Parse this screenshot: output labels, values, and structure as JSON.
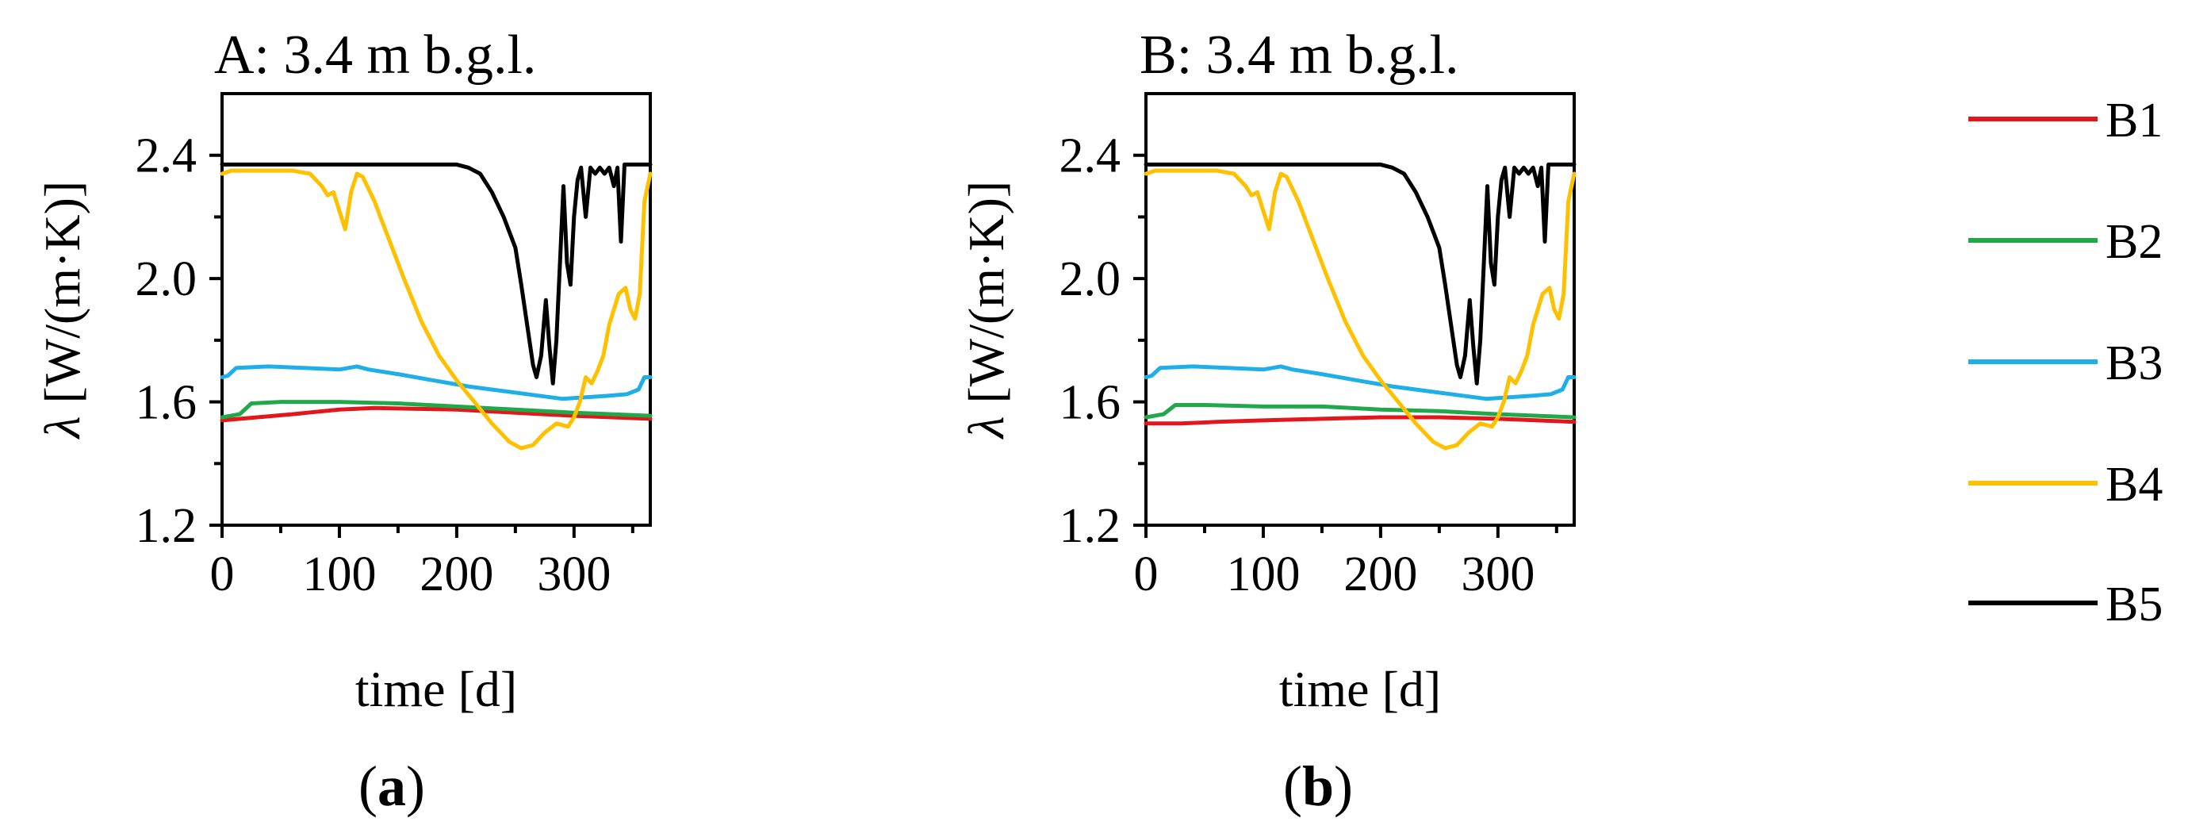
{
  "chart_data": [
    {
      "type": "line",
      "title": "A: 3.4 m b.g.l.",
      "caption_letter": "a",
      "xlabel": "time [d]",
      "ylabel_symbol": "λ",
      "ylabel_unit": "[W/(m·K)]",
      "xlim": [
        0,
        365
      ],
      "ylim": [
        1.2,
        2.6
      ],
      "xticks": [
        0,
        100,
        200,
        300
      ],
      "xminor": [
        50,
        150,
        250,
        350
      ],
      "yticks": [
        1.2,
        1.6,
        2.0,
        2.4
      ],
      "yminor": [
        1.4,
        1.8,
        2.2
      ],
      "series": [
        {
          "name": "B1",
          "color": "#e3161b",
          "points": [
            [
              0,
              1.54
            ],
            [
              30,
              1.55
            ],
            [
              60,
              1.56
            ],
            [
              100,
              1.575
            ],
            [
              130,
              1.58
            ],
            [
              200,
              1.575
            ],
            [
              250,
              1.565
            ],
            [
              300,
              1.555
            ],
            [
              365,
              1.545
            ]
          ]
        },
        {
          "name": "B2",
          "color": "#21a84a",
          "points": [
            [
              0,
              1.55
            ],
            [
              15,
              1.56
            ],
            [
              25,
              1.595
            ],
            [
              50,
              1.6
            ],
            [
              100,
              1.6
            ],
            [
              150,
              1.595
            ],
            [
              200,
              1.585
            ],
            [
              250,
              1.575
            ],
            [
              300,
              1.565
            ],
            [
              365,
              1.555
            ]
          ]
        },
        {
          "name": "B3",
          "color": "#1eaee8",
          "points": [
            [
              0,
              1.68
            ],
            [
              5,
              1.685
            ],
            [
              12,
              1.71
            ],
            [
              40,
              1.715
            ],
            [
              70,
              1.71
            ],
            [
              100,
              1.705
            ],
            [
              115,
              1.715
            ],
            [
              125,
              1.705
            ],
            [
              150,
              1.69
            ],
            [
              180,
              1.67
            ],
            [
              210,
              1.65
            ],
            [
              240,
              1.635
            ],
            [
              270,
              1.62
            ],
            [
              290,
              1.61
            ],
            [
              310,
              1.615
            ],
            [
              330,
              1.62
            ],
            [
              345,
              1.625
            ],
            [
              355,
              1.64
            ],
            [
              360,
              1.68
            ],
            [
              365,
              1.68
            ]
          ]
        },
        {
          "name": "B4",
          "color": "#ffc000",
          "points": [
            [
              0,
              2.34
            ],
            [
              8,
              2.35
            ],
            [
              60,
              2.35
            ],
            [
              75,
              2.34
            ],
            [
              85,
              2.3
            ],
            [
              90,
              2.27
            ],
            [
              95,
              2.28
            ],
            [
              100,
              2.22
            ],
            [
              105,
              2.16
            ],
            [
              110,
              2.28
            ],
            [
              115,
              2.34
            ],
            [
              120,
              2.33
            ],
            [
              130,
              2.25
            ],
            [
              140,
              2.15
            ],
            [
              155,
              2.0
            ],
            [
              170,
              1.86
            ],
            [
              185,
              1.75
            ],
            [
              200,
              1.67
            ],
            [
              215,
              1.6
            ],
            [
              230,
              1.53
            ],
            [
              245,
              1.47
            ],
            [
              255,
              1.45
            ],
            [
              265,
              1.46
            ],
            [
              275,
              1.5
            ],
            [
              285,
              1.53
            ],
            [
              295,
              1.52
            ],
            [
              300,
              1.55
            ],
            [
              305,
              1.6
            ],
            [
              310,
              1.68
            ],
            [
              315,
              1.66
            ],
            [
              320,
              1.7
            ],
            [
              325,
              1.75
            ],
            [
              330,
              1.85
            ],
            [
              338,
              1.95
            ],
            [
              344,
              1.97
            ],
            [
              348,
              1.9
            ],
            [
              352,
              1.87
            ],
            [
              356,
              1.95
            ],
            [
              360,
              2.25
            ],
            [
              365,
              2.34
            ]
          ]
        },
        {
          "name": "B5",
          "color": "#000000",
          "points": [
            [
              0,
              2.37
            ],
            [
              200,
              2.37
            ],
            [
              210,
              2.36
            ],
            [
              220,
              2.34
            ],
            [
              230,
              2.28
            ],
            [
              240,
              2.2
            ],
            [
              250,
              2.1
            ],
            [
              255,
              1.98
            ],
            [
              260,
              1.85
            ],
            [
              265,
              1.72
            ],
            [
              268,
              1.68
            ],
            [
              272,
              1.75
            ],
            [
              276,
              1.93
            ],
            [
              279,
              1.78
            ],
            [
              282,
              1.66
            ],
            [
              285,
              1.8
            ],
            [
              288,
              2.05
            ],
            [
              291,
              2.3
            ],
            [
              294,
              2.05
            ],
            [
              297,
              1.98
            ],
            [
              300,
              2.2
            ],
            [
              303,
              2.32
            ],
            [
              306,
              2.36
            ],
            [
              310,
              2.2
            ],
            [
              314,
              2.36
            ],
            [
              318,
              2.34
            ],
            [
              322,
              2.36
            ],
            [
              326,
              2.34
            ],
            [
              330,
              2.36
            ],
            [
              334,
              2.3
            ],
            [
              337,
              2.36
            ],
            [
              340,
              2.12
            ],
            [
              343,
              2.37
            ],
            [
              365,
              2.37
            ]
          ]
        }
      ]
    },
    {
      "type": "line",
      "title": "B: 3.4 m b.g.l.",
      "caption_letter": "b",
      "xlabel": "time [d]",
      "ylabel_symbol": "λ",
      "ylabel_unit": "[W/(m·K)]",
      "xlim": [
        0,
        365
      ],
      "ylim": [
        1.2,
        2.6
      ],
      "xticks": [
        0,
        100,
        200,
        300
      ],
      "xminor": [
        50,
        150,
        250,
        350
      ],
      "yticks": [
        1.2,
        1.6,
        2.0,
        2.4
      ],
      "yminor": [
        1.4,
        1.8,
        2.2
      ],
      "series": [
        {
          "name": "B1",
          "color": "#e3161b",
          "points": [
            [
              0,
              1.53
            ],
            [
              30,
              1.53
            ],
            [
              60,
              1.535
            ],
            [
              100,
              1.54
            ],
            [
              150,
              1.545
            ],
            [
              200,
              1.55
            ],
            [
              250,
              1.55
            ],
            [
              300,
              1.545
            ],
            [
              365,
              1.535
            ]
          ]
        },
        {
          "name": "B2",
          "color": "#21a84a",
          "points": [
            [
              0,
              1.55
            ],
            [
              15,
              1.56
            ],
            [
              25,
              1.59
            ],
            [
              50,
              1.59
            ],
            [
              100,
              1.585
            ],
            [
              150,
              1.585
            ],
            [
              200,
              1.575
            ],
            [
              250,
              1.57
            ],
            [
              300,
              1.56
            ],
            [
              365,
              1.55
            ]
          ]
        },
        {
          "name": "B3",
          "color": "#1eaee8",
          "points": [
            [
              0,
              1.68
            ],
            [
              5,
              1.685
            ],
            [
              12,
              1.71
            ],
            [
              40,
              1.715
            ],
            [
              70,
              1.71
            ],
            [
              100,
              1.705
            ],
            [
              115,
              1.715
            ],
            [
              125,
              1.705
            ],
            [
              150,
              1.69
            ],
            [
              180,
              1.67
            ],
            [
              210,
              1.65
            ],
            [
              240,
              1.635
            ],
            [
              270,
              1.62
            ],
            [
              290,
              1.61
            ],
            [
              310,
              1.615
            ],
            [
              330,
              1.62
            ],
            [
              345,
              1.625
            ],
            [
              355,
              1.64
            ],
            [
              360,
              1.68
            ],
            [
              365,
              1.68
            ]
          ]
        },
        {
          "name": "B4",
          "color": "#ffc000",
          "points": [
            [
              0,
              2.34
            ],
            [
              8,
              2.35
            ],
            [
              60,
              2.35
            ],
            [
              75,
              2.34
            ],
            [
              85,
              2.3
            ],
            [
              90,
              2.27
            ],
            [
              95,
              2.28
            ],
            [
              100,
              2.22
            ],
            [
              105,
              2.16
            ],
            [
              110,
              2.28
            ],
            [
              115,
              2.34
            ],
            [
              120,
              2.33
            ],
            [
              130,
              2.25
            ],
            [
              140,
              2.15
            ],
            [
              155,
              2.0
            ],
            [
              170,
              1.86
            ],
            [
              185,
              1.75
            ],
            [
              200,
              1.67
            ],
            [
              215,
              1.6
            ],
            [
              230,
              1.53
            ],
            [
              245,
              1.47
            ],
            [
              255,
              1.45
            ],
            [
              265,
              1.46
            ],
            [
              275,
              1.5
            ],
            [
              285,
              1.53
            ],
            [
              295,
              1.52
            ],
            [
              300,
              1.55
            ],
            [
              305,
              1.6
            ],
            [
              310,
              1.68
            ],
            [
              315,
              1.66
            ],
            [
              320,
              1.7
            ],
            [
              325,
              1.75
            ],
            [
              330,
              1.85
            ],
            [
              338,
              1.95
            ],
            [
              344,
              1.97
            ],
            [
              348,
              1.9
            ],
            [
              352,
              1.87
            ],
            [
              356,
              1.95
            ],
            [
              360,
              2.25
            ],
            [
              365,
              2.34
            ]
          ]
        },
        {
          "name": "B5",
          "color": "#000000",
          "points": [
            [
              0,
              2.37
            ],
            [
              200,
              2.37
            ],
            [
              210,
              2.36
            ],
            [
              220,
              2.34
            ],
            [
              230,
              2.28
            ],
            [
              240,
              2.2
            ],
            [
              250,
              2.1
            ],
            [
              255,
              1.98
            ],
            [
              260,
              1.85
            ],
            [
              265,
              1.72
            ],
            [
              268,
              1.68
            ],
            [
              272,
              1.75
            ],
            [
              276,
              1.93
            ],
            [
              279,
              1.78
            ],
            [
              282,
              1.66
            ],
            [
              285,
              1.8
            ],
            [
              288,
              2.05
            ],
            [
              291,
              2.3
            ],
            [
              294,
              2.05
            ],
            [
              297,
              1.98
            ],
            [
              300,
              2.2
            ],
            [
              303,
              2.32
            ],
            [
              306,
              2.36
            ],
            [
              310,
              2.2
            ],
            [
              314,
              2.36
            ],
            [
              318,
              2.34
            ],
            [
              322,
              2.36
            ],
            [
              326,
              2.34
            ],
            [
              330,
              2.36
            ],
            [
              334,
              2.3
            ],
            [
              337,
              2.36
            ],
            [
              340,
              2.12
            ],
            [
              343,
              2.37
            ],
            [
              365,
              2.37
            ]
          ]
        }
      ]
    }
  ],
  "legend": {
    "placement": "right",
    "entries": [
      {
        "label": "B1",
        "color": "#e3161b"
      },
      {
        "label": "B2",
        "color": "#21a84a"
      },
      {
        "label": "B3",
        "color": "#1eaee8"
      },
      {
        "label": "B4",
        "color": "#ffc000"
      },
      {
        "label": "B5",
        "color": "#000000"
      }
    ]
  }
}
